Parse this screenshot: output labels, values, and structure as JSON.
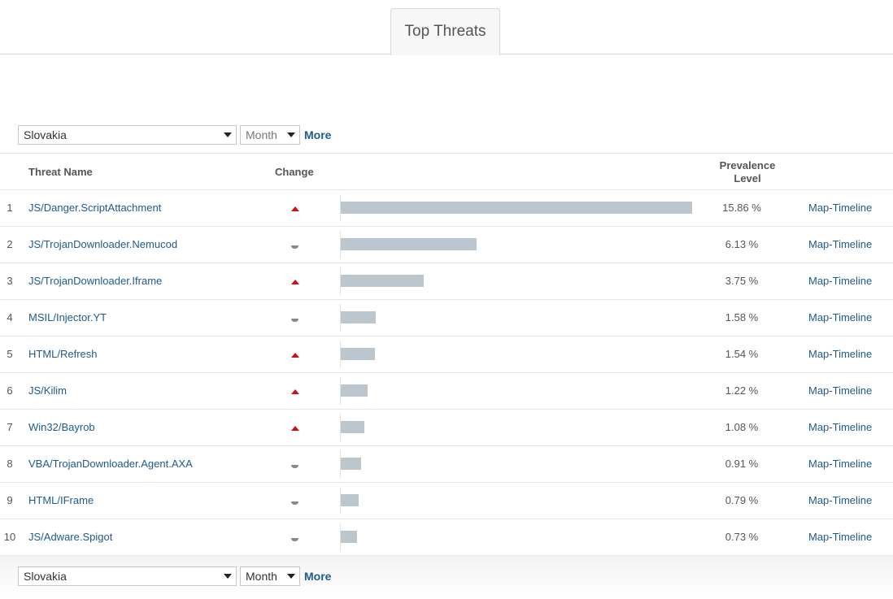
{
  "tabs": {
    "active_label": "Top Threats"
  },
  "filters": {
    "country": "Slovakia",
    "period": "Month",
    "more_label": "More"
  },
  "table": {
    "headers": {
      "name": "Threat Name",
      "change": "Change",
      "prevalence_line1": "Prevalence",
      "prevalence_line2": "Level"
    },
    "rows": [
      {
        "rank": "1",
        "name": "JS/Danger.ScriptAttachment",
        "change": "up",
        "prevalence": 15.86,
        "prevalence_label": "15.86 %",
        "link": "Map-Timeline"
      },
      {
        "rank": "2",
        "name": "JS/TrojanDownloader.Nemucod",
        "change": "same",
        "prevalence": 6.13,
        "prevalence_label": "6.13 %",
        "link": "Map-Timeline"
      },
      {
        "rank": "3",
        "name": "JS/TrojanDownloader.Iframe",
        "change": "up",
        "prevalence": 3.75,
        "prevalence_label": "3.75 %",
        "link": "Map-Timeline"
      },
      {
        "rank": "4",
        "name": "MSIL/Injector.YT",
        "change": "same",
        "prevalence": 1.58,
        "prevalence_label": "1.58 %",
        "link": "Map-Timeline"
      },
      {
        "rank": "5",
        "name": "HTML/Refresh",
        "change": "up",
        "prevalence": 1.54,
        "prevalence_label": "1.54 %",
        "link": "Map-Timeline"
      },
      {
        "rank": "6",
        "name": "JS/Kilim",
        "change": "up",
        "prevalence": 1.22,
        "prevalence_label": "1.22 %",
        "link": "Map-Timeline"
      },
      {
        "rank": "7",
        "name": "Win32/Bayrob",
        "change": "up",
        "prevalence": 1.08,
        "prevalence_label": "1.08 %",
        "link": "Map-Timeline"
      },
      {
        "rank": "8",
        "name": "VBA/TrojanDownloader.Agent.AXA",
        "change": "same",
        "prevalence": 0.91,
        "prevalence_label": "0.91 %",
        "link": "Map-Timeline"
      },
      {
        "rank": "9",
        "name": "HTML/IFrame",
        "change": "same",
        "prevalence": 0.79,
        "prevalence_label": "0.79 %",
        "link": "Map-Timeline"
      },
      {
        "rank": "10",
        "name": "JS/Adware.Spigot",
        "change": "same",
        "prevalence": 0.73,
        "prevalence_label": "0.73 %",
        "link": "Map-Timeline"
      }
    ]
  },
  "colors": {
    "link": "#1f5a8c",
    "bar": "#bcc6cf",
    "change_up": "#cc1111",
    "change_same": "#888888"
  },
  "icons": {
    "change_up": "triangle-up-icon",
    "change_same": "half-circle-icon",
    "dropdown": "caret-down-icon"
  }
}
